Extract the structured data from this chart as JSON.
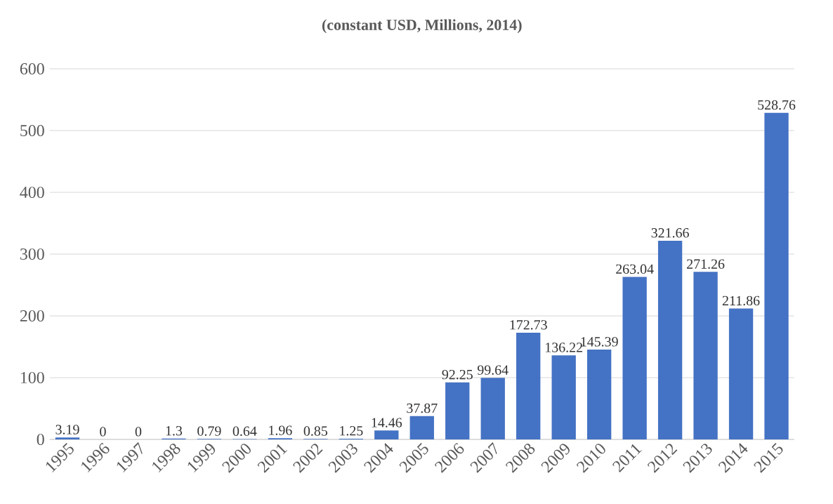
{
  "chart_data": {
    "type": "bar",
    "title": "(constant USD, Millions, 2014)",
    "categories": [
      "1995",
      "1996",
      "1997",
      "1998",
      "1999",
      "2000",
      "2001",
      "2002",
      "2003",
      "2004",
      "2005",
      "2006",
      "2007",
      "2008",
      "2009",
      "2010",
      "2011",
      "2012",
      "2013",
      "2014",
      "2015"
    ],
    "values": [
      3.19,
      0,
      0,
      1.3,
      0.79,
      0.64,
      1.96,
      0.85,
      1.25,
      14.46,
      37.87,
      92.25,
      99.64,
      172.73,
      136.22,
      145.39,
      263.04,
      321.66,
      271.26,
      211.86,
      528.76
    ],
    "color": "#4472c4",
    "ylim": [
      0,
      600
    ],
    "yticks": [
      0,
      100,
      200,
      300,
      400,
      500,
      600
    ],
    "grid": "y",
    "data_labels": true
  }
}
